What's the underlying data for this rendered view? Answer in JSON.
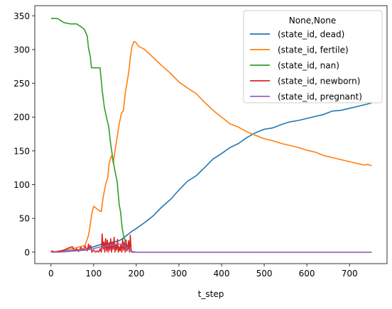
{
  "chart_data": {
    "type": "line",
    "title": "",
    "xlabel": "t_step",
    "ylabel": "",
    "xlim": [
      -38,
      788
    ],
    "ylim": [
      -17,
      365
    ],
    "xticks": [
      0,
      100,
      200,
      300,
      400,
      500,
      600,
      700
    ],
    "yticks": [
      0,
      50,
      100,
      150,
      200,
      250,
      300,
      350
    ],
    "grid": false,
    "legend": {
      "title": "None,None",
      "placement": "top-right"
    },
    "series": [
      {
        "name": "(state_id, dead)",
        "color": "#1f77b4",
        "x": [
          0,
          80,
          100,
          120,
          140,
          160,
          170,
          180,
          190,
          200,
          220,
          240,
          260,
          280,
          300,
          320,
          340,
          360,
          380,
          400,
          420,
          440,
          460,
          480,
          500,
          520,
          540,
          560,
          580,
          600,
          620,
          640,
          660,
          680,
          700,
          720,
          740,
          752
        ],
        "y": [
          0,
          4,
          8,
          12,
          14,
          17,
          21,
          26,
          31,
          35,
          44,
          54,
          67,
          78,
          92,
          105,
          113,
          125,
          138,
          146,
          155,
          161,
          170,
          177,
          182,
          184,
          189,
          193,
          195,
          198,
          201,
          204,
          209,
          210,
          213,
          216,
          219,
          221
        ]
      },
      {
        "name": "(state_id, fertile)",
        "color": "#ff7f0e",
        "x": [
          0,
          50,
          80,
          88,
          92,
          95,
          100,
          110,
          118,
          122,
          128,
          133,
          136,
          140,
          143,
          146,
          150,
          155,
          160,
          165,
          170,
          174,
          178,
          182,
          186,
          190,
          195,
          200,
          205,
          220,
          240,
          260,
          280,
          300,
          320,
          340,
          360,
          380,
          400,
          420,
          440,
          460,
          480,
          500,
          520,
          540,
          560,
          580,
          600,
          620,
          640,
          660,
          680,
          700,
          720,
          735,
          742,
          752
        ],
        "y": [
          0,
          5,
          10,
          25,
          40,
          55,
          68,
          63,
          60,
          80,
          100,
          110,
          130,
          140,
          143,
          132,
          150,
          170,
          190,
          205,
          210,
          235,
          250,
          265,
          288,
          305,
          312,
          310,
          305,
          300,
          288,
          276,
          265,
          252,
          243,
          235,
          222,
          210,
          200,
          190,
          185,
          178,
          173,
          168,
          165,
          161,
          158,
          155,
          151,
          148,
          143,
          140,
          137,
          134,
          131,
          129,
          130,
          128
        ]
      },
      {
        "name": "(state_id, nan)",
        "color": "#2ca02c",
        "x": [
          0,
          15,
          30,
          45,
          60,
          70,
          78,
          85,
          88,
          92,
          95,
          100,
          105,
          110,
          115,
          120,
          125,
          130,
          135,
          140,
          145,
          150,
          155,
          160,
          163,
          167,
          170,
          175,
          180,
          185,
          190
        ],
        "y": [
          346,
          346,
          340,
          338,
          338,
          334,
          330,
          320,
          302,
          290,
          273,
          273,
          273,
          273,
          273,
          240,
          215,
          200,
          187,
          160,
          138,
          120,
          105,
          70,
          60,
          35,
          25,
          15,
          8,
          3,
          0
        ]
      },
      {
        "name": "(state_id, newborn)",
        "color": "#d62728",
        "x": [
          0,
          10,
          20,
          30,
          40,
          50,
          55,
          60,
          65,
          70,
          75,
          80,
          85,
          88,
          90,
          93,
          96,
          100,
          105,
          108,
          112,
          115,
          118,
          120,
          122,
          124,
          126,
          128,
          130,
          132,
          134,
          136,
          138,
          140,
          142,
          144,
          146,
          148,
          150,
          152,
          154,
          156,
          158,
          160,
          162,
          164,
          166,
          168,
          170,
          172,
          174,
          176,
          178,
          180,
          182,
          184,
          186,
          188,
          190,
          192,
          200,
          300,
          400,
          500,
          600,
          700,
          752
        ],
        "y": [
          2,
          0,
          1,
          3,
          6,
          8,
          2,
          5,
          1,
          7,
          3,
          9,
          2,
          12,
          5,
          10,
          0,
          3,
          0,
          2,
          0,
          5,
          0,
          27,
          5,
          15,
          0,
          20,
          2,
          18,
          0,
          13,
          3,
          20,
          0,
          15,
          4,
          22,
          0,
          12,
          3,
          19,
          0,
          8,
          2,
          12,
          0,
          20,
          3,
          15,
          0,
          18,
          2,
          5,
          17,
          0,
          25,
          3,
          0,
          0,
          0,
          0,
          0,
          0,
          0,
          0,
          0
        ]
      },
      {
        "name": "(state_id, pregnant)",
        "color": "#9467bd",
        "x": [
          0,
          20,
          40,
          60,
          80,
          100,
          110,
          120,
          130,
          140,
          150,
          160,
          170,
          180,
          190,
          200,
          300,
          400,
          500,
          600,
          700,
          752
        ],
        "y": [
          0,
          0,
          1,
          2,
          3,
          5,
          7,
          8,
          9,
          10,
          11,
          12,
          10,
          5,
          1,
          0,
          0,
          0,
          0,
          0,
          0,
          0
        ]
      }
    ]
  }
}
